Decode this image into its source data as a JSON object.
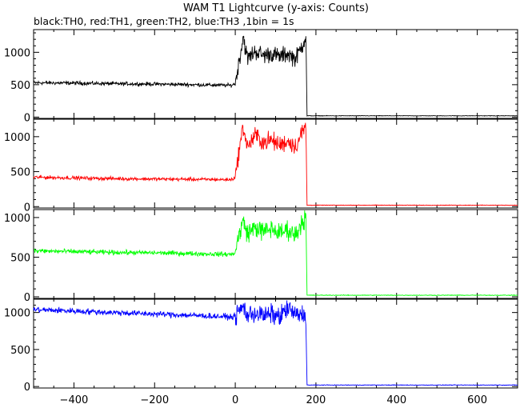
{
  "chart_data": {
    "type": "line",
    "title": "WAM T1 Lightcurve (y-axis: Counts)",
    "subtitle": "black:TH0, red:TH1, green:TH2, blue:TH3 ,1bin = 1s",
    "xlim": [
      -500,
      700
    ],
    "x_ticks": [
      -400,
      -200,
      0,
      200,
      400,
      600
    ],
    "x_tick_labels": [
      "−400",
      "−200",
      "0",
      "200",
      "400",
      "600"
    ],
    "panels": [
      {
        "name": "TH0",
        "color": "#000000",
        "ylim": [
          -20,
          1350
        ],
        "y_ticks": [
          0,
          500,
          1000
        ],
        "y_tick_labels": [
          "0",
          "500",
          "1000"
        ],
        "x": [
          -500,
          -400,
          -300,
          -200,
          -100,
          -10,
          0,
          10,
          20,
          30,
          50,
          70,
          90,
          110,
          130,
          150,
          165,
          175,
          178,
          700
        ],
        "y": [
          530,
          525,
          515,
          510,
          500,
          490,
          520,
          880,
          1250,
          900,
          1020,
          950,
          980,
          930,
          980,
          900,
          1100,
          1250,
          20,
          20
        ]
      },
      {
        "name": "TH1",
        "color": "#ff0000",
        "ylim": [
          -20,
          1250
        ],
        "y_ticks": [
          0,
          500,
          1000
        ],
        "y_tick_labels": [
          "0",
          "500",
          "1000"
        ],
        "x": [
          -500,
          -400,
          -300,
          -200,
          -100,
          -10,
          0,
          10,
          20,
          30,
          50,
          70,
          90,
          110,
          130,
          150,
          165,
          175,
          178,
          700
        ],
        "y": [
          420,
          410,
          400,
          395,
          390,
          385,
          420,
          820,
          1150,
          850,
          1020,
          920,
          950,
          880,
          940,
          860,
          1050,
          1150,
          20,
          20
        ]
      },
      {
        "name": "TH2",
        "color": "#00ff00",
        "ylim": [
          -20,
          1100
        ],
        "y_ticks": [
          0,
          500,
          1000
        ],
        "y_tick_labels": [
          "0",
          "500",
          "1000"
        ],
        "x": [
          -500,
          -400,
          -300,
          -200,
          -100,
          -10,
          0,
          10,
          20,
          30,
          50,
          70,
          90,
          110,
          130,
          150,
          165,
          175,
          178,
          700
        ],
        "y": [
          580,
          570,
          560,
          555,
          545,
          535,
          560,
          800,
          950,
          800,
          880,
          820,
          860,
          800,
          850,
          780,
          950,
          1000,
          20,
          20
        ]
      },
      {
        "name": "TH3",
        "color": "#0000ff",
        "ylim": [
          -20,
          1180
        ],
        "y_ticks": [
          0,
          500,
          1000
        ],
        "y_tick_labels": [
          "0",
          "500",
          "1000"
        ],
        "x": [
          -500,
          -400,
          -300,
          -200,
          -100,
          -10,
          0,
          10,
          20,
          30,
          50,
          70,
          90,
          110,
          130,
          150,
          165,
          175,
          178,
          700
        ],
        "y": [
          1040,
          1020,
          1000,
          980,
          960,
          940,
          950,
          1020,
          1080,
          960,
          1000,
          950,
          980,
          940,
          1060,
          960,
          980,
          950,
          20,
          20
        ]
      }
    ],
    "grid": false
  }
}
